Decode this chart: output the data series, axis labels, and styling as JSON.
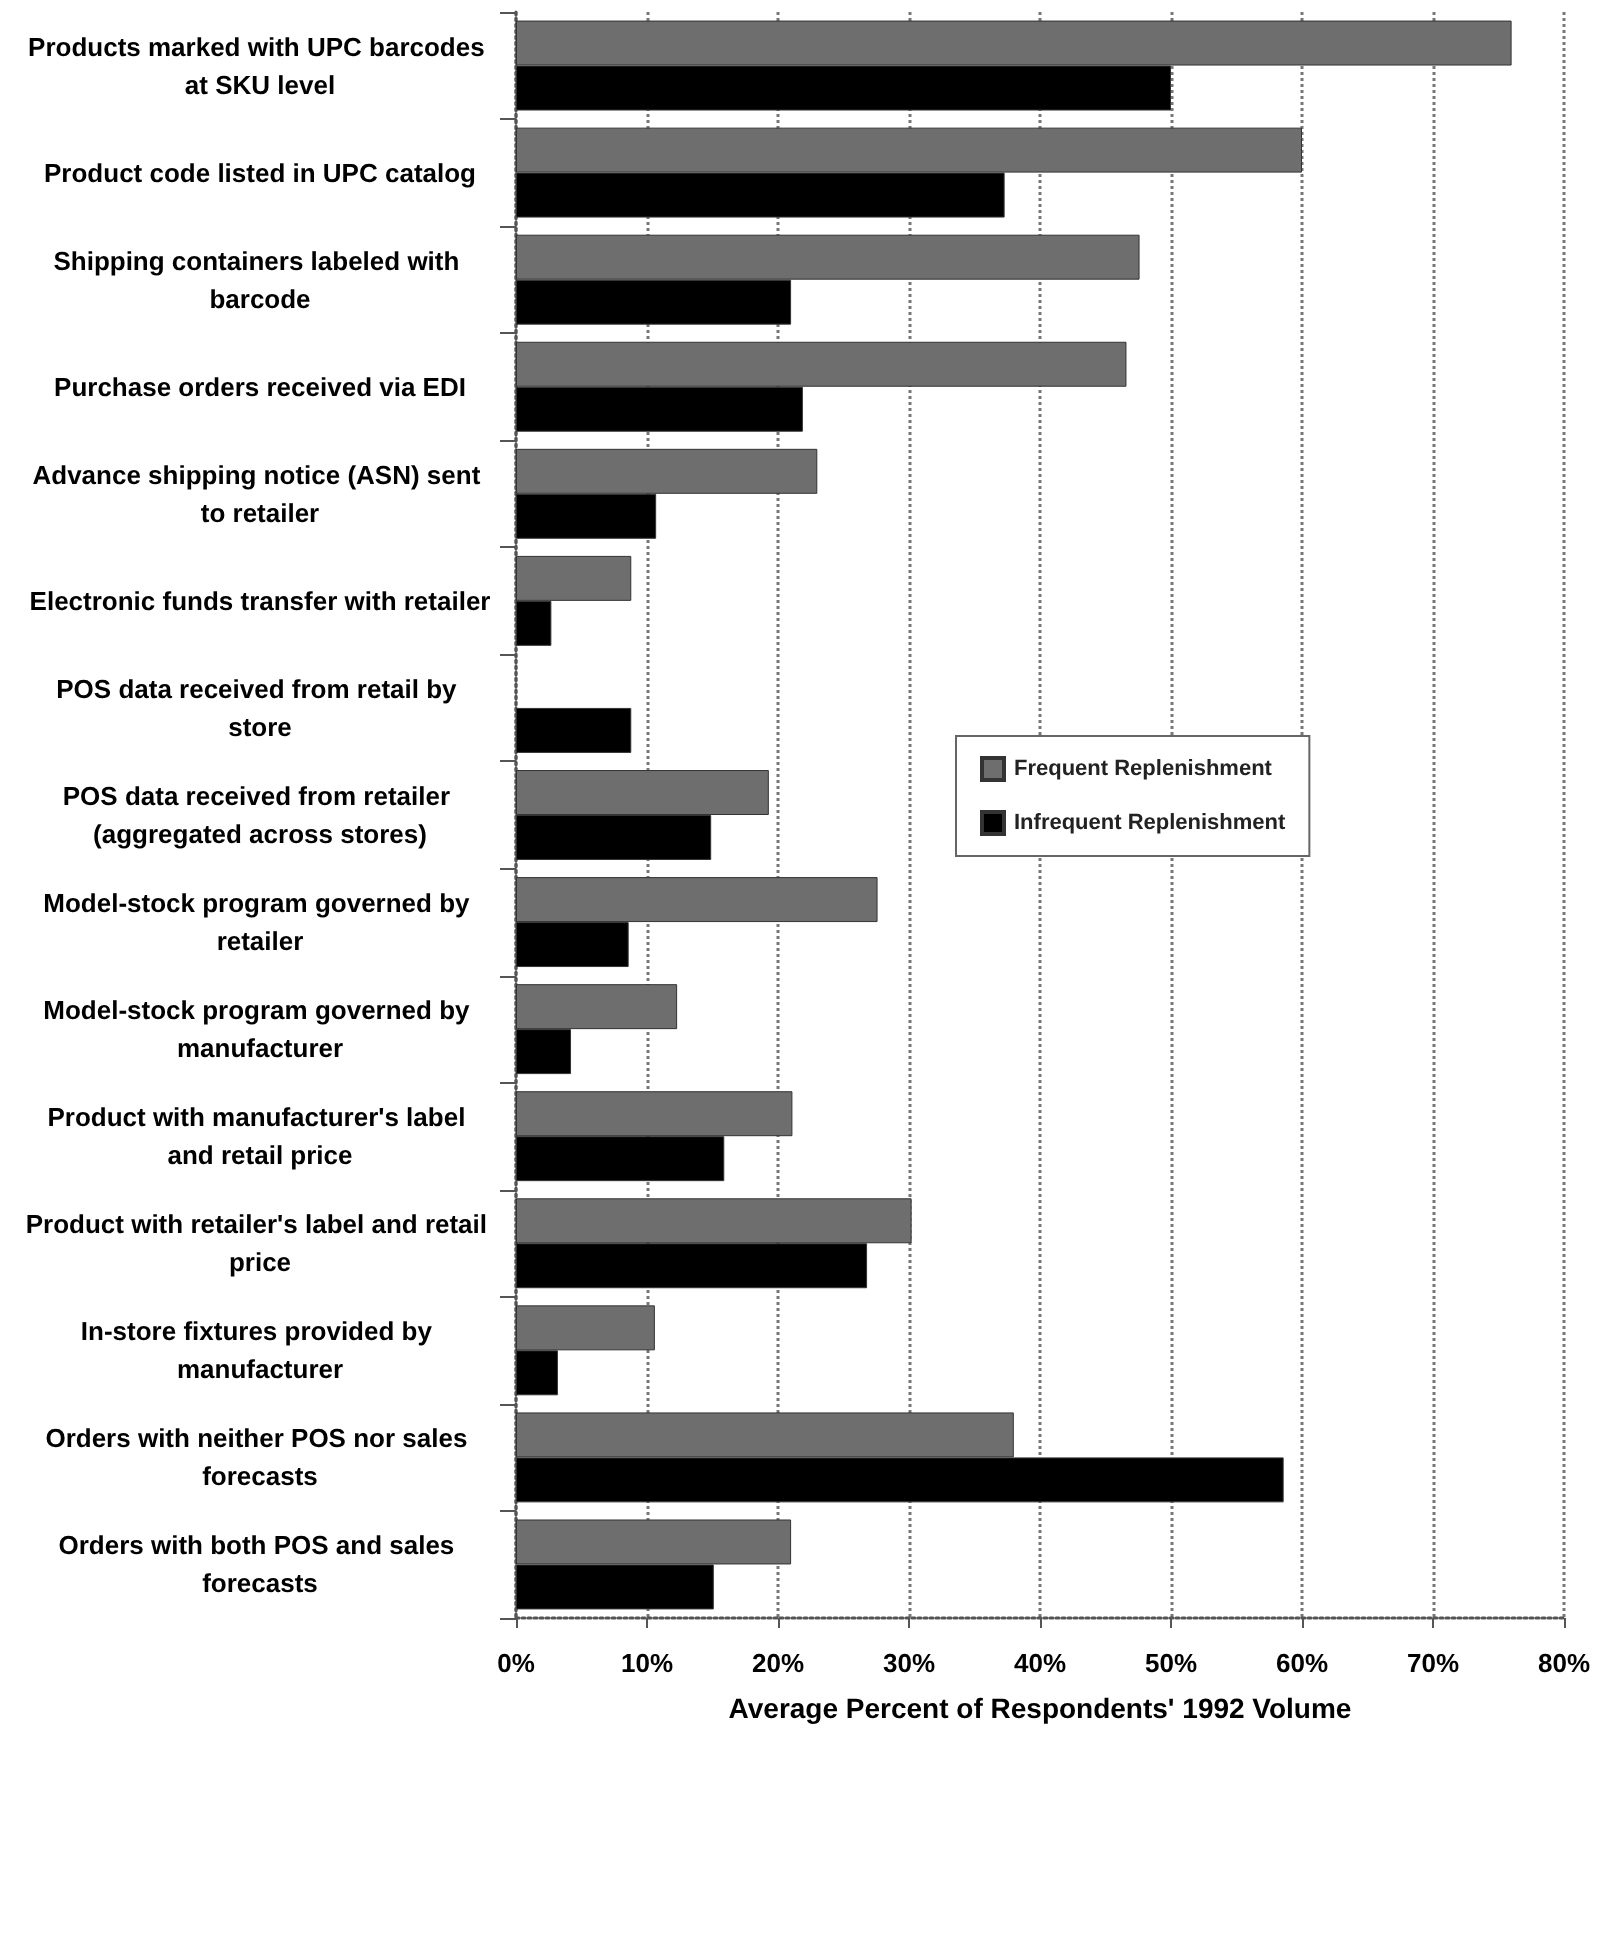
{
  "chart_data": {
    "type": "bar",
    "orientation": "horizontal",
    "xlabel": "Average Percent of Respondents' 1992 Volume",
    "categories": [
      "Products marked with UPC barcodes at SKU level",
      "Product code listed in UPC catalog",
      "Shipping containers labeled with barcode",
      "Purchase orders received via EDI",
      "Advance shipping notice (ASN) sent to retailer",
      "Electronic funds transfer with retailer",
      "POS data received from retail by store",
      "POS data received from retailer (aggregated across stores)",
      "Model-stock program governed by retailer",
      "Model-stock program governed by manufacturer",
      "Product with manufacturer's label and retail price",
      "Product with retailer's label and retail price",
      "In-store fixtures provided by manufacturer",
      "Orders with neither POS nor sales forecasts",
      "Orders with both POS and sales forecasts"
    ],
    "series": [
      {
        "name": "Frequent Replenishment",
        "color": "#6e6e6e",
        "values": [
          76,
          60,
          47.6,
          46.6,
          23,
          8.8,
          null,
          19.3,
          27.6,
          12.3,
          21.1,
          30.2,
          10.6,
          38,
          21
        ]
      },
      {
        "name": "Infrequent Replenishment",
        "color": "#000000",
        "values": [
          50,
          37.3,
          21,
          21.9,
          10.7,
          2.7,
          8.8,
          14.9,
          8.6,
          4.2,
          15.9,
          26.8,
          3.2,
          58.6,
          15.1
        ]
      }
    ],
    "xlim": [
      0,
      80
    ],
    "xticks": [
      {
        "value": 0,
        "label": "0%"
      },
      {
        "value": 10,
        "label": "10%"
      },
      {
        "value": 20,
        "label": "20%"
      },
      {
        "value": 30,
        "label": "30%"
      },
      {
        "value": 40,
        "label": "40%"
      },
      {
        "value": 50,
        "label": "50%"
      },
      {
        "value": 60,
        "label": "60%"
      },
      {
        "value": 70,
        "label": "70%"
      },
      {
        "value": 80,
        "label": "80%"
      }
    ],
    "grid": "x",
    "legend": "right"
  }
}
